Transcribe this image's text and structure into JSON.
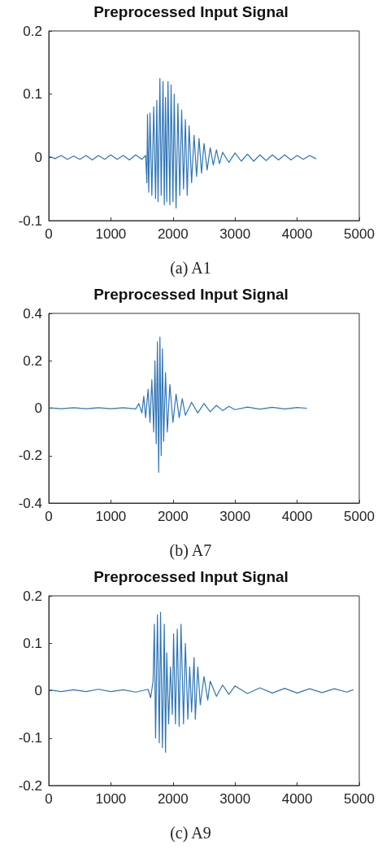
{
  "chart_data": [
    {
      "type": "line",
      "title": "Preprocessed Input Signal",
      "annotations": [
        "(a) A1"
      ],
      "xlim": [
        0,
        5000
      ],
      "xticks": [
        0,
        1000,
        2000,
        3000,
        4000,
        5000
      ],
      "ylim": [
        -0.1,
        0.2
      ],
      "yticks": [
        -0.1,
        0,
        0.1,
        0.2
      ],
      "marker": "none",
      "line_style": "solid",
      "series": [
        {
          "color": "#2e75b6",
          "x": [
            0,
            100,
            200,
            300,
            400,
            500,
            600,
            700,
            800,
            900,
            1000,
            1100,
            1200,
            1300,
            1400,
            1500,
            1560,
            1580,
            1590,
            1610,
            1630,
            1660,
            1690,
            1720,
            1740,
            1760,
            1790,
            1810,
            1840,
            1860,
            1880,
            1900,
            1920,
            1950,
            1970,
            2000,
            2020,
            2050,
            2080,
            2110,
            2140,
            2170,
            2200,
            2230,
            2260,
            2300,
            2340,
            2380,
            2420,
            2460,
            2500,
            2550,
            2600,
            2650,
            2700,
            2750,
            2800,
            2900,
            3000,
            3100,
            3200,
            3300,
            3400,
            3500,
            3600,
            3700,
            3800,
            3900,
            4000,
            4100,
            4200,
            4300
          ],
          "values": [
            0.002,
            -0.002,
            0.003,
            -0.003,
            0.002,
            -0.003,
            0.003,
            -0.004,
            0.003,
            -0.003,
            0.004,
            -0.003,
            0.003,
            -0.004,
            0.004,
            -0.003,
            0.003,
            -0.04,
            0.068,
            -0.055,
            0.07,
            -0.06,
            0.08,
            -0.065,
            0.09,
            -0.07,
            0.125,
            -0.06,
            0.12,
            -0.075,
            0.095,
            -0.07,
            0.12,
            -0.075,
            0.115,
            -0.07,
            0.1,
            -0.08,
            0.085,
            -0.06,
            0.075,
            -0.05,
            0.06,
            -0.06,
            0.05,
            -0.04,
            0.035,
            -0.03,
            0.03,
            -0.025,
            0.022,
            -0.02,
            0.015,
            -0.012,
            0.012,
            -0.01,
            0.008,
            -0.008,
            0.007,
            -0.006,
            0.005,
            -0.006,
            0.004,
            -0.005,
            0.004,
            -0.004,
            0.004,
            -0.004,
            0.003,
            -0.003,
            0.003,
            -0.002
          ]
        }
      ]
    },
    {
      "type": "line",
      "title": "Preprocessed Input Signal",
      "annotations": [
        "(b) A7"
      ],
      "xlim": [
        0,
        5000
      ],
      "xticks": [
        0,
        1000,
        2000,
        3000,
        4000,
        5000
      ],
      "ylim": [
        -0.4,
        0.4
      ],
      "yticks": [
        -0.4,
        -0.2,
        0,
        0.2,
        0.4
      ],
      "marker": "none",
      "line_style": "solid",
      "series": [
        {
          "color": "#2e75b6",
          "x": [
            0,
            200,
            400,
            600,
            800,
            1000,
            1200,
            1400,
            1450,
            1500,
            1530,
            1560,
            1600,
            1630,
            1660,
            1690,
            1710,
            1730,
            1750,
            1770,
            1790,
            1810,
            1830,
            1850,
            1880,
            1910,
            1950,
            2000,
            2050,
            2100,
            2150,
            2200,
            2300,
            2400,
            2500,
            2600,
            2700,
            2800,
            2900,
            3000,
            3200,
            3400,
            3600,
            3800,
            4000,
            4150
          ],
          "values": [
            0.002,
            -0.002,
            0.002,
            -0.002,
            0.002,
            -0.002,
            0.002,
            -0.003,
            0.02,
            -0.02,
            0.05,
            -0.04,
            0.08,
            -0.06,
            0.12,
            -0.1,
            0.2,
            -0.15,
            0.28,
            -0.27,
            0.3,
            -0.2,
            0.25,
            -0.14,
            0.15,
            -0.1,
            0.1,
            -0.06,
            0.06,
            -0.04,
            0.04,
            -0.03,
            0.025,
            -0.02,
            0.02,
            -0.015,
            0.012,
            -0.01,
            0.008,
            -0.006,
            0.005,
            -0.004,
            0.004,
            -0.003,
            0.003,
            0
          ]
        }
      ]
    },
    {
      "type": "line",
      "title": "Preprocessed Input Signal",
      "annotations": [
        "(c) A9"
      ],
      "xlim": [
        0,
        5000
      ],
      "xticks": [
        0,
        1000,
        2000,
        3000,
        4000,
        5000
      ],
      "ylim": [
        -0.2,
        0.2
      ],
      "yticks": [
        -0.2,
        -0.1,
        0,
        0.1,
        0.2
      ],
      "marker": "none",
      "line_style": "solid",
      "series": [
        {
          "color": "#2e75b6",
          "x": [
            0,
            200,
            400,
            600,
            800,
            1000,
            1200,
            1400,
            1600,
            1640,
            1680,
            1700,
            1720,
            1750,
            1780,
            1800,
            1830,
            1860,
            1880,
            1900,
            1930,
            1960,
            1990,
            2010,
            2040,
            2070,
            2100,
            2130,
            2170,
            2200,
            2240,
            2270,
            2300,
            2340,
            2360,
            2400,
            2440,
            2500,
            2560,
            2600,
            2700,
            2800,
            2900,
            3000,
            3200,
            3400,
            3600,
            3800,
            4000,
            4200,
            4400,
            4600,
            4800,
            4900
          ],
          "values": [
            0.002,
            -0.002,
            0.002,
            -0.002,
            0.003,
            -0.002,
            0.002,
            -0.003,
            0.003,
            -0.015,
            0.02,
            0.14,
            -0.1,
            0.16,
            -0.11,
            0.165,
            -0.12,
            0.14,
            -0.13,
            0.08,
            -0.07,
            0.05,
            -0.05,
            0.12,
            -0.07,
            0.13,
            -0.075,
            0.14,
            -0.07,
            0.1,
            -0.06,
            0.05,
            -0.045,
            0.07,
            -0.06,
            0.05,
            -0.03,
            0.03,
            -0.02,
            0.02,
            -0.012,
            0.012,
            -0.008,
            0.01,
            -0.006,
            0.006,
            -0.005,
            0.005,
            -0.005,
            0.004,
            -0.004,
            0.004,
            -0.003,
            0.002
          ]
        }
      ]
    }
  ]
}
